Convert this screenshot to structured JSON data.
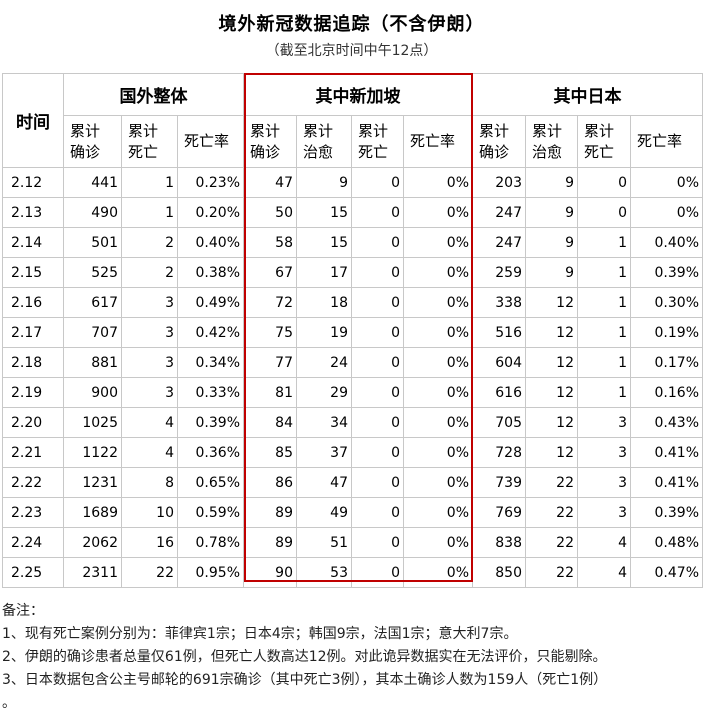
{
  "title": "境外新冠数据追踪（不含伊朗）",
  "subtitle": "（截至北京时间中午12点）",
  "table": {
    "time_header": "时间",
    "groups": [
      "国外整体",
      "其中新加坡",
      "其中日本"
    ],
    "subheaders": [
      [
        "累计",
        "确诊"
      ],
      [
        "累计",
        "死亡"
      ],
      [
        "死亡率"
      ],
      [
        "累计",
        "确诊"
      ],
      [
        "累计",
        "治愈"
      ],
      [
        "累计",
        "死亡"
      ],
      [
        "死亡率"
      ],
      [
        "累计",
        "确诊"
      ],
      [
        "累计",
        "治愈"
      ],
      [
        "累计",
        "死亡"
      ],
      [
        "死亡率"
      ]
    ],
    "rows": [
      [
        "2.12",
        "441",
        "1",
        "0.23%",
        "47",
        "9",
        "0",
        "0%",
        "203",
        "9",
        "0",
        "0%"
      ],
      [
        "2.13",
        "490",
        "1",
        "0.20%",
        "50",
        "15",
        "0",
        "0%",
        "247",
        "9",
        "0",
        "0%"
      ],
      [
        "2.14",
        "501",
        "2",
        "0.40%",
        "58",
        "15",
        "0",
        "0%",
        "247",
        "9",
        "1",
        "0.40%"
      ],
      [
        "2.15",
        "525",
        "2",
        "0.38%",
        "67",
        "17",
        "0",
        "0%",
        "259",
        "9",
        "1",
        "0.39%"
      ],
      [
        "2.16",
        "617",
        "3",
        "0.49%",
        "72",
        "18",
        "0",
        "0%",
        "338",
        "12",
        "1",
        "0.30%"
      ],
      [
        "2.17",
        "707",
        "3",
        "0.42%",
        "75",
        "19",
        "0",
        "0%",
        "516",
        "12",
        "1",
        "0.19%"
      ],
      [
        "2.18",
        "881",
        "3",
        "0.34%",
        "77",
        "24",
        "0",
        "0%",
        "604",
        "12",
        "1",
        "0.17%"
      ],
      [
        "2.19",
        "900",
        "3",
        "0.33%",
        "81",
        "29",
        "0",
        "0%",
        "616",
        "12",
        "1",
        "0.16%"
      ],
      [
        "2.20",
        "1025",
        "4",
        "0.39%",
        "84",
        "34",
        "0",
        "0%",
        "705",
        "12",
        "3",
        "0.43%"
      ],
      [
        "2.21",
        "1122",
        "4",
        "0.36%",
        "85",
        "37",
        "0",
        "0%",
        "728",
        "12",
        "3",
        "0.41%"
      ],
      [
        "2.22",
        "1231",
        "8",
        "0.65%",
        "86",
        "47",
        "0",
        "0%",
        "739",
        "22",
        "3",
        "0.41%"
      ],
      [
        "2.23",
        "1689",
        "10",
        "0.59%",
        "89",
        "49",
        "0",
        "0%",
        "769",
        "22",
        "3",
        "0.39%"
      ],
      [
        "2.24",
        "2062",
        "16",
        "0.78%",
        "89",
        "51",
        "0",
        "0%",
        "838",
        "22",
        "4",
        "0.48%"
      ],
      [
        "2.25",
        "2311",
        "22",
        "0.95%",
        "90",
        "53",
        "0",
        "0%",
        "850",
        "22",
        "4",
        "0.47%"
      ]
    ]
  },
  "highlight_color": "#c00000",
  "notes": [
    "备注：",
    "1、现有死亡案例分别为：菲律宾1宗；日本4宗；韩国9宗，法国1宗；意大利7宗。",
    "2、伊朗的确诊患者总量仅61例，但死亡人数高达12例。对此诡异数据实在无法评价，只能剔除。",
    "3、日本数据包含公主号邮轮的691宗确诊（其中死亡3例），其本土确诊人数为159人（死亡1例）",
    "。"
  ]
}
